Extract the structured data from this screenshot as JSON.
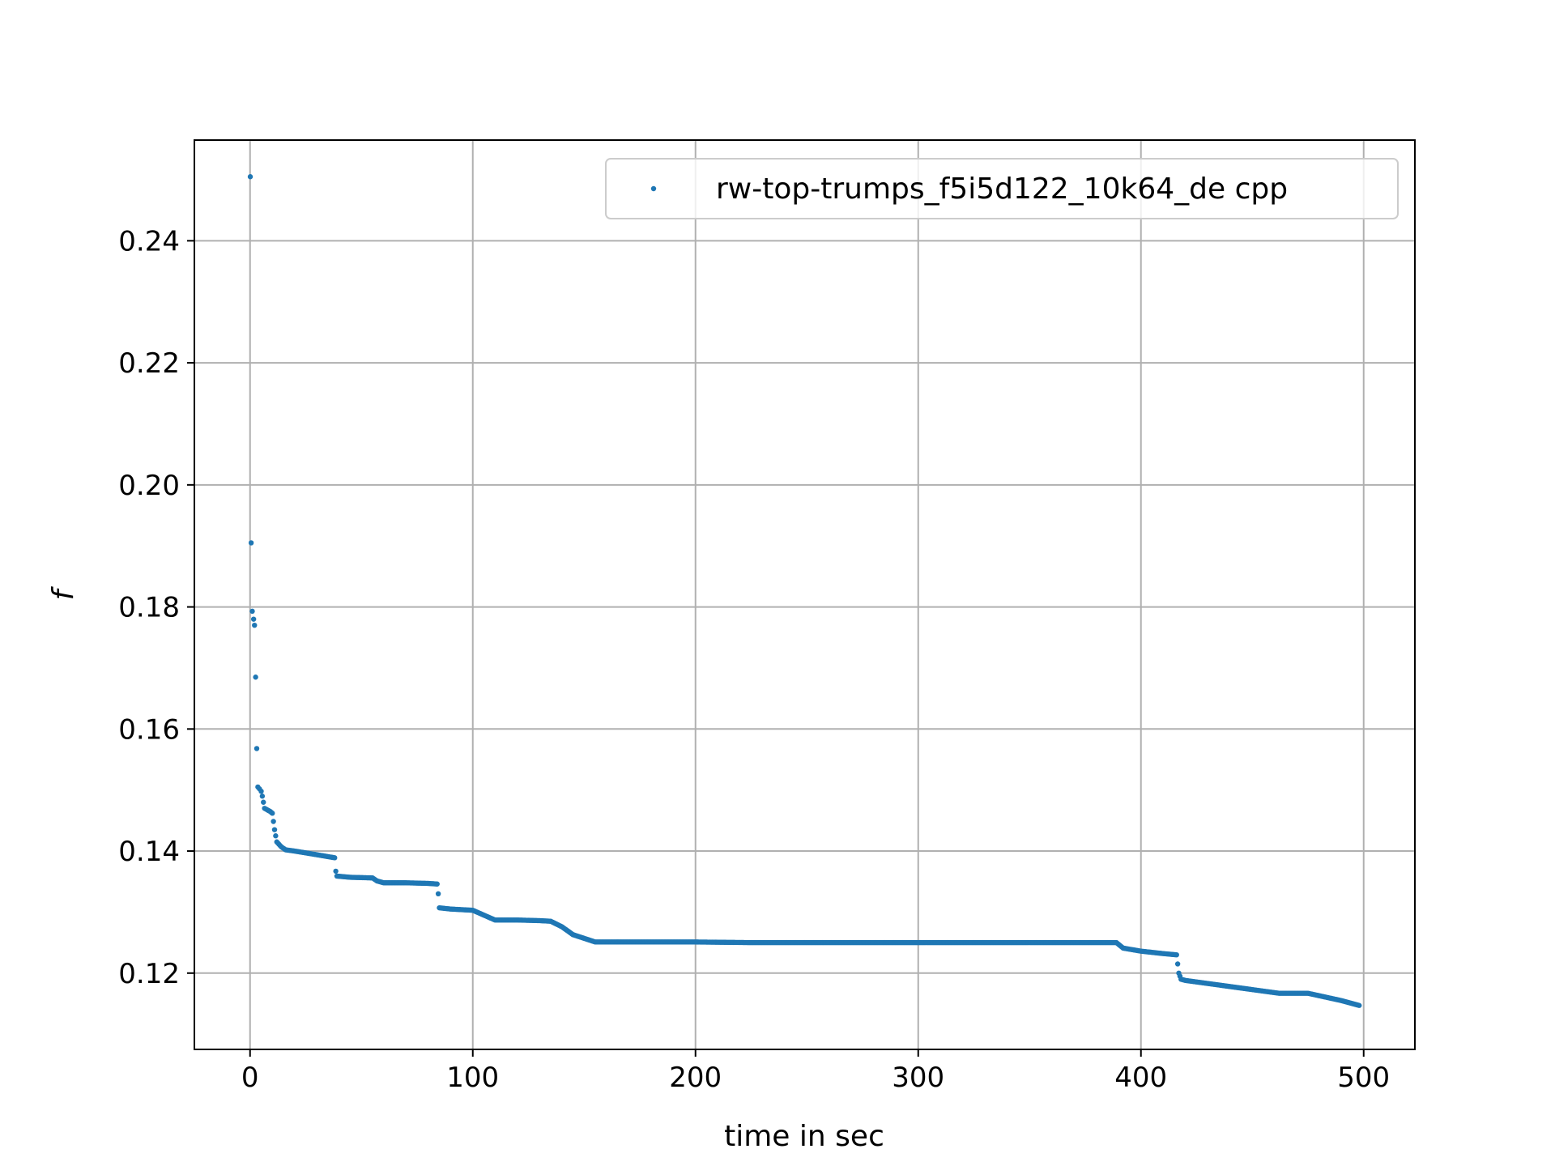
{
  "chart_data": {
    "type": "scatter",
    "title": "",
    "xlabel": "time in sec",
    "ylabel": "f",
    "xlim": [
      -25,
      523
    ],
    "ylim": [
      0.1075,
      0.2565
    ],
    "xticks": [
      0,
      100,
      200,
      300,
      400,
      500
    ],
    "xtick_labels": [
      "0",
      "100",
      "200",
      "300",
      "400",
      "500"
    ],
    "yticks": [
      0.12,
      0.14,
      0.16,
      0.18,
      0.2,
      0.22,
      0.24
    ],
    "ytick_labels": [
      "0.12",
      "0.14",
      "0.16",
      "0.18",
      "0.20",
      "0.22",
      "0.24"
    ],
    "grid": true,
    "legend_position": "top-right",
    "colors": {
      "series": "#1f77b4",
      "grid": "#b0b0b0",
      "axes": "#000000"
    },
    "series": [
      {
        "name": "rw-top-trumps_f5i5d122_10k64_de cpp",
        "points": [
          [
            0.1,
            0.2505
          ],
          [
            0.5,
            0.1905
          ],
          [
            1.0,
            0.1793
          ],
          [
            1.6,
            0.178
          ],
          [
            2.0,
            0.177
          ],
          [
            2.5,
            0.1685
          ],
          [
            3.0,
            0.1568
          ],
          [
            3.5,
            0.1505
          ],
          [
            4.2,
            0.1502
          ],
          [
            5.0,
            0.1498
          ],
          [
            5.5,
            0.149
          ],
          [
            6.0,
            0.148
          ],
          [
            6.5,
            0.147
          ],
          [
            8.0,
            0.1467
          ],
          [
            9.0,
            0.1465
          ],
          [
            10.0,
            0.1462
          ],
          [
            11.0,
            0.1435
          ],
          [
            12.0,
            0.1415
          ],
          [
            14.0,
            0.1407
          ],
          [
            16.0,
            0.1402
          ],
          [
            20.0,
            0.14
          ],
          [
            30.0,
            0.1394
          ],
          [
            38.0,
            0.1389
          ],
          [
            38.5,
            0.1367
          ],
          [
            39.0,
            0.1359
          ],
          [
            45.0,
            0.1357
          ],
          [
            55.0,
            0.1356
          ],
          [
            57.0,
            0.1351
          ],
          [
            60.0,
            0.1348
          ],
          [
            70.0,
            0.1348
          ],
          [
            80.0,
            0.1347
          ],
          [
            84.0,
            0.1346
          ],
          [
            84.5,
            0.133
          ],
          [
            85.0,
            0.1307
          ],
          [
            90.0,
            0.1305
          ],
          [
            100.0,
            0.1303
          ],
          [
            105.0,
            0.1295
          ],
          [
            110.0,
            0.1287
          ],
          [
            120.0,
            0.1287
          ],
          [
            130.0,
            0.1286
          ],
          [
            135.0,
            0.1285
          ],
          [
            140.0,
            0.1276
          ],
          [
            145.0,
            0.1263
          ],
          [
            150.0,
            0.1257
          ],
          [
            155.0,
            0.1251
          ],
          [
            160.0,
            0.1251
          ],
          [
            180.0,
            0.1251
          ],
          [
            200.0,
            0.1251
          ],
          [
            225.0,
            0.125
          ],
          [
            260.0,
            0.125
          ],
          [
            300.0,
            0.125
          ],
          [
            340.0,
            0.125
          ],
          [
            370.0,
            0.125
          ],
          [
            389.0,
            0.125
          ],
          [
            392.0,
            0.1241
          ],
          [
            400.0,
            0.1236
          ],
          [
            410.0,
            0.1232
          ],
          [
            416.0,
            0.123
          ],
          [
            416.5,
            0.1215
          ],
          [
            417.0,
            0.12
          ],
          [
            418.0,
            0.119
          ],
          [
            420.0,
            0.1188
          ],
          [
            440.0,
            0.1178
          ],
          [
            462.0,
            0.1167
          ],
          [
            475.0,
            0.1167
          ],
          [
            490.0,
            0.1155
          ],
          [
            498.0,
            0.1147
          ]
        ]
      }
    ]
  }
}
